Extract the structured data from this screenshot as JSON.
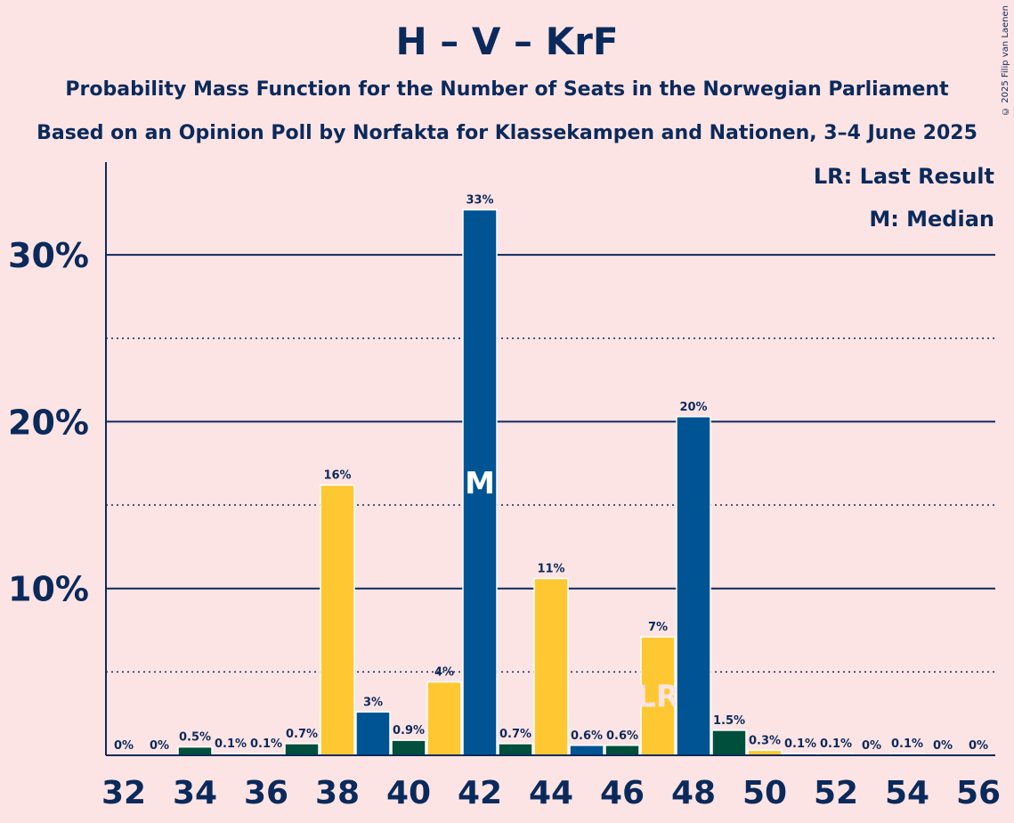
{
  "chart_data": {
    "type": "bar",
    "title": "H – V – KrF",
    "subtitle_line1": "Probability Mass Function for the Number of Seats in the Norwegian Parliament",
    "subtitle_line2": "Based on an Opinion Poll by Norfakta for Klassekampen and Nationen, 3–4 June 2025",
    "copyright": "© 2025 Filip van Laenen",
    "legend": {
      "last_result": "LR: Last Result",
      "median": "M: Median"
    },
    "ylim": [
      0,
      35.5
    ],
    "y_major_ticks": [
      10,
      20,
      30
    ],
    "y_tick_labels": [
      "10%",
      "20%",
      "30%"
    ],
    "y_minor_gridlines": [
      5,
      15,
      25
    ],
    "x_tick_labels": [
      "32",
      "34",
      "36",
      "38",
      "40",
      "42",
      "44",
      "46",
      "48",
      "50",
      "52",
      "54",
      "56"
    ],
    "median_seat": 42,
    "median_marker": "M",
    "last_result_seat": 47,
    "last_result_marker": "LR",
    "colors": {
      "blue": "#005494",
      "yellow": "#ffc832",
      "green": "#004f3c",
      "axis": "#0b2a5c",
      "background": "#fde4e4"
    },
    "bars": [
      {
        "seat": 32,
        "value": 0,
        "label": "0%",
        "color": "blue"
      },
      {
        "seat": 33,
        "value": 0,
        "label": "0%",
        "color": "yellow"
      },
      {
        "seat": 34,
        "value": 0.5,
        "label": "0.5%",
        "color": "green"
      },
      {
        "seat": 35,
        "value": 0.1,
        "label": "0.1%",
        "color": "blue"
      },
      {
        "seat": 36,
        "value": 0.1,
        "label": "0.1%",
        "color": "yellow"
      },
      {
        "seat": 37,
        "value": 0.7,
        "label": "0.7%",
        "color": "green"
      },
      {
        "seat": 38,
        "value": 16.2,
        "label": "16%",
        "color": "yellow"
      },
      {
        "seat": 39,
        "value": 2.6,
        "label": "3%",
        "color": "blue"
      },
      {
        "seat": 40,
        "value": 0.9,
        "label": "0.9%",
        "color": "green"
      },
      {
        "seat": 41,
        "value": 4.4,
        "label": "4%",
        "color": "yellow"
      },
      {
        "seat": 42,
        "value": 32.7,
        "label": "33%",
        "color": "blue"
      },
      {
        "seat": 43,
        "value": 0.7,
        "label": "0.7%",
        "color": "green"
      },
      {
        "seat": 44,
        "value": 10.6,
        "label": "11%",
        "color": "yellow"
      },
      {
        "seat": 45,
        "value": 0.6,
        "label": "0.6%",
        "color": "blue"
      },
      {
        "seat": 46,
        "value": 0.6,
        "label": "0.6%",
        "color": "green"
      },
      {
        "seat": 47,
        "value": 7.1,
        "label": "7%",
        "color": "yellow"
      },
      {
        "seat": 48,
        "value": 20.3,
        "label": "20%",
        "color": "blue"
      },
      {
        "seat": 49,
        "value": 1.5,
        "label": "1.5%",
        "color": "green"
      },
      {
        "seat": 50,
        "value": 0.3,
        "label": "0.3%",
        "color": "yellow"
      },
      {
        "seat": 51,
        "value": 0.1,
        "label": "0.1%",
        "color": "blue"
      },
      {
        "seat": 52,
        "value": 0.1,
        "label": "0.1%",
        "color": "green"
      },
      {
        "seat": 53,
        "value": 0,
        "label": "0%",
        "color": "yellow"
      },
      {
        "seat": 54,
        "value": 0.1,
        "label": "0.1%",
        "color": "blue"
      },
      {
        "seat": 55,
        "value": 0,
        "label": "0%",
        "color": "green"
      },
      {
        "seat": 56,
        "value": 0,
        "label": "0%",
        "color": "yellow"
      }
    ]
  }
}
